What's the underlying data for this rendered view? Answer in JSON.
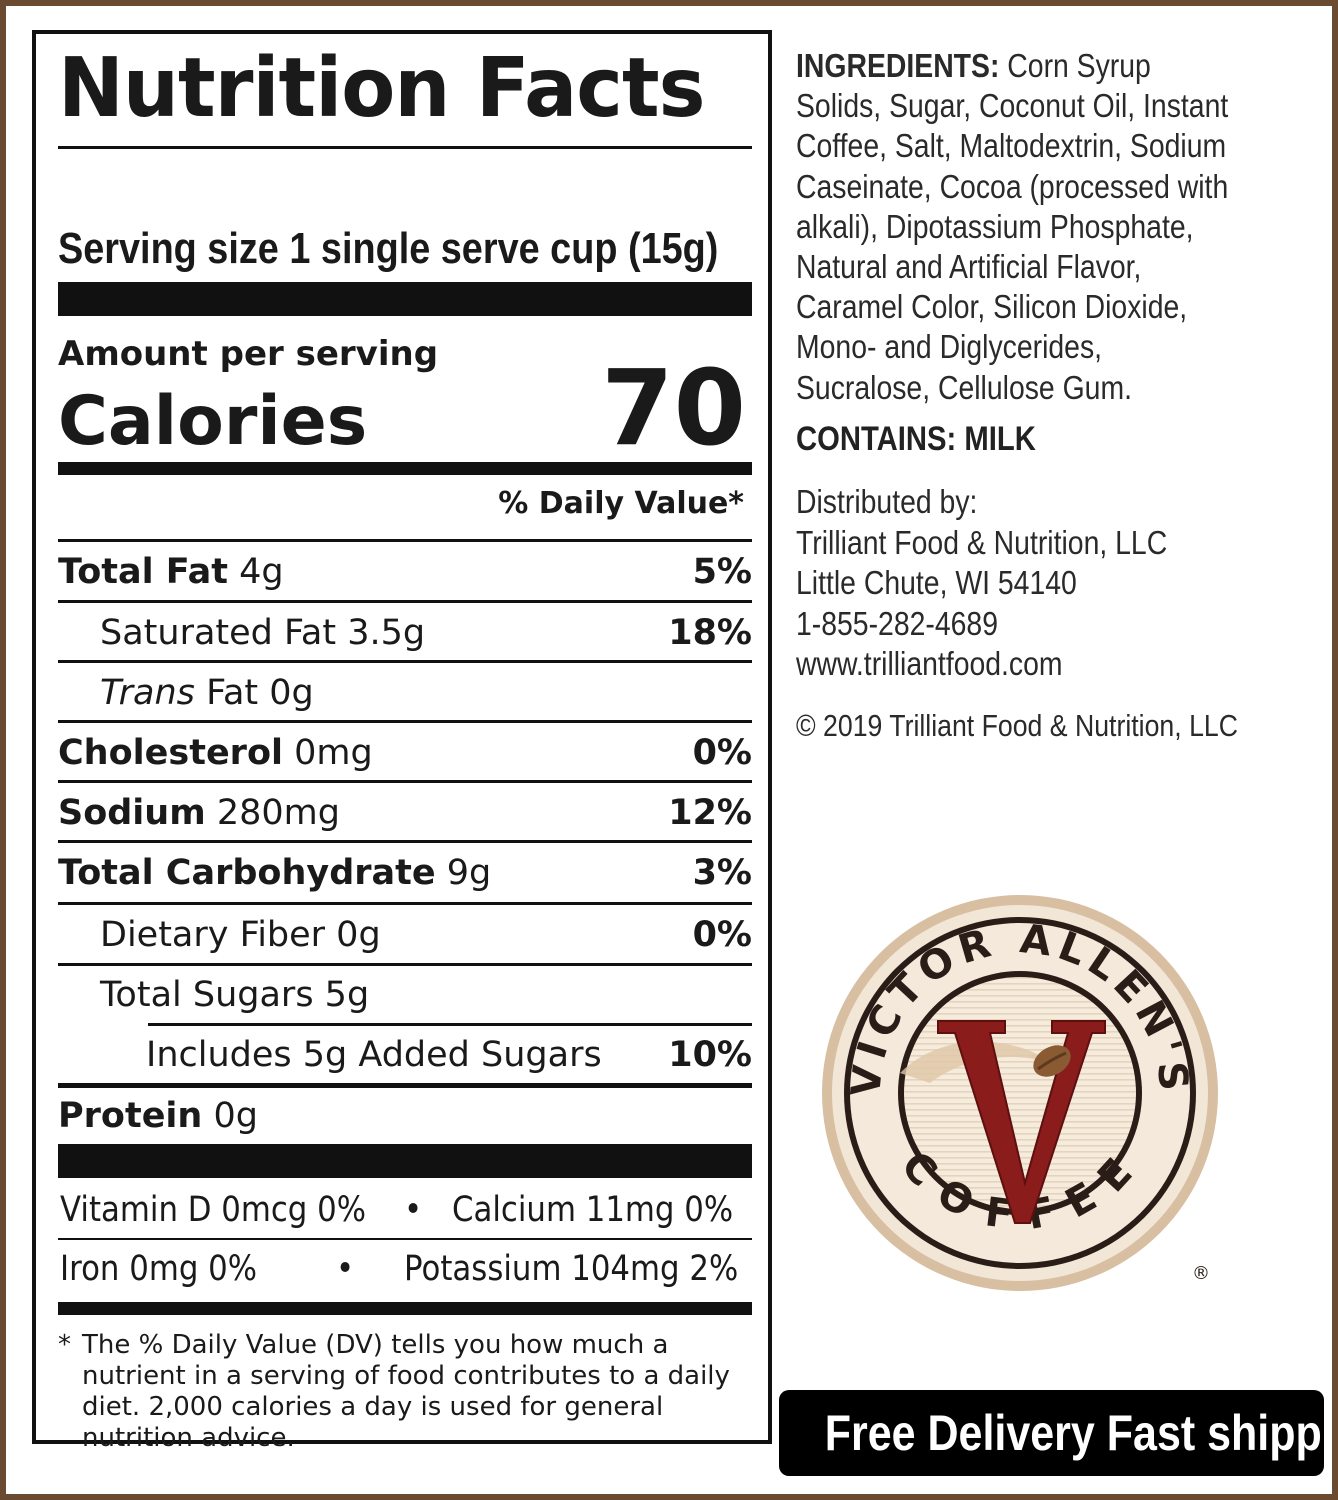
{
  "nutrition_facts": {
    "title": "Nutrition Facts",
    "serving_size": "Serving size 1 single serve cup (15g)",
    "amount_per_serving": "Amount per serving",
    "calories_label": "Calories",
    "calories_value": "70",
    "daily_value_header": "% Daily Value*",
    "rows": [
      {
        "name": "Total Fat",
        "amount": "4g",
        "pct": "5%"
      },
      {
        "name": "Saturated Fat 3.5g",
        "amount": "",
        "pct": "18%"
      },
      {
        "name_italic": "Trans",
        "name_rest": "Fat 0g",
        "pct": ""
      },
      {
        "name": "Cholesterol",
        "amount": "0mg",
        "pct": "0%"
      },
      {
        "name": "Sodium",
        "amount": "280mg",
        "pct": "12%"
      },
      {
        "name": "Total Carbohydrate",
        "amount": "9g",
        "pct": "3%"
      },
      {
        "name": "Dietary Fiber 0g",
        "amount": "",
        "pct": "0%"
      },
      {
        "name": "Total Sugars 5g",
        "amount": "",
        "pct": ""
      },
      {
        "name": "Includes 5g Added Sugars",
        "amount": "",
        "pct": "10%"
      },
      {
        "name": "Protein",
        "amount": "0g",
        "pct": ""
      }
    ],
    "vitamins": {
      "vitamin_d": "Vitamin D 0mcg 0%",
      "calcium": "Calcium 11mg 0%",
      "iron": "Iron 0mg 0%",
      "potassium": "Potassium 104mg 2%",
      "separator": "•"
    },
    "footnote_star": "*",
    "footnote": "The % Daily Value (DV) tells you how much a nutrient in a serving of food contributes to a daily diet. 2,000 calories a day is used for general nutrition advice."
  },
  "ingredients": {
    "label": "INGREDIENTS:",
    "lines": [
      " Corn Syrup",
      "Solids, Sugar, Coconut Oil, Instant",
      "Coffee, Salt, Maltodextrin, Sodium",
      "Caseinate, Cocoa (processed with",
      "alkali), Dipotassium Phosphate,",
      "Natural and Artificial Flavor,",
      "Caramel Color, Silicon Dioxide,",
      "Mono- and Diglycerides,",
      "Sucralose, Cellulose Gum."
    ]
  },
  "contains": "CONTAINS: MILK",
  "distributor": {
    "lines": [
      "Distributed by:",
      "Trilliant Food & Nutrition, LLC",
      "Little Chute, WI 54140",
      "1-855-282-4689",
      "www.trilliantfood.com"
    ]
  },
  "copyright": "© 2019 Trilliant Food & Nutrition, LLC",
  "logo": {
    "top_text": "VICTOR ALLEN'S",
    "bottom_text": "COFFEE",
    "monogram": "V",
    "registered": "®",
    "colors": {
      "ring": "#2a1d17",
      "gold": "#c9a27a",
      "red": "#8a1c1c",
      "cream": "#f4e9da"
    }
  },
  "promo_banner": "Free Delivery Fast shipping",
  "colors": {
    "frame": "#6b4a32",
    "ink": "#111111",
    "text": "#2a2a2a"
  }
}
